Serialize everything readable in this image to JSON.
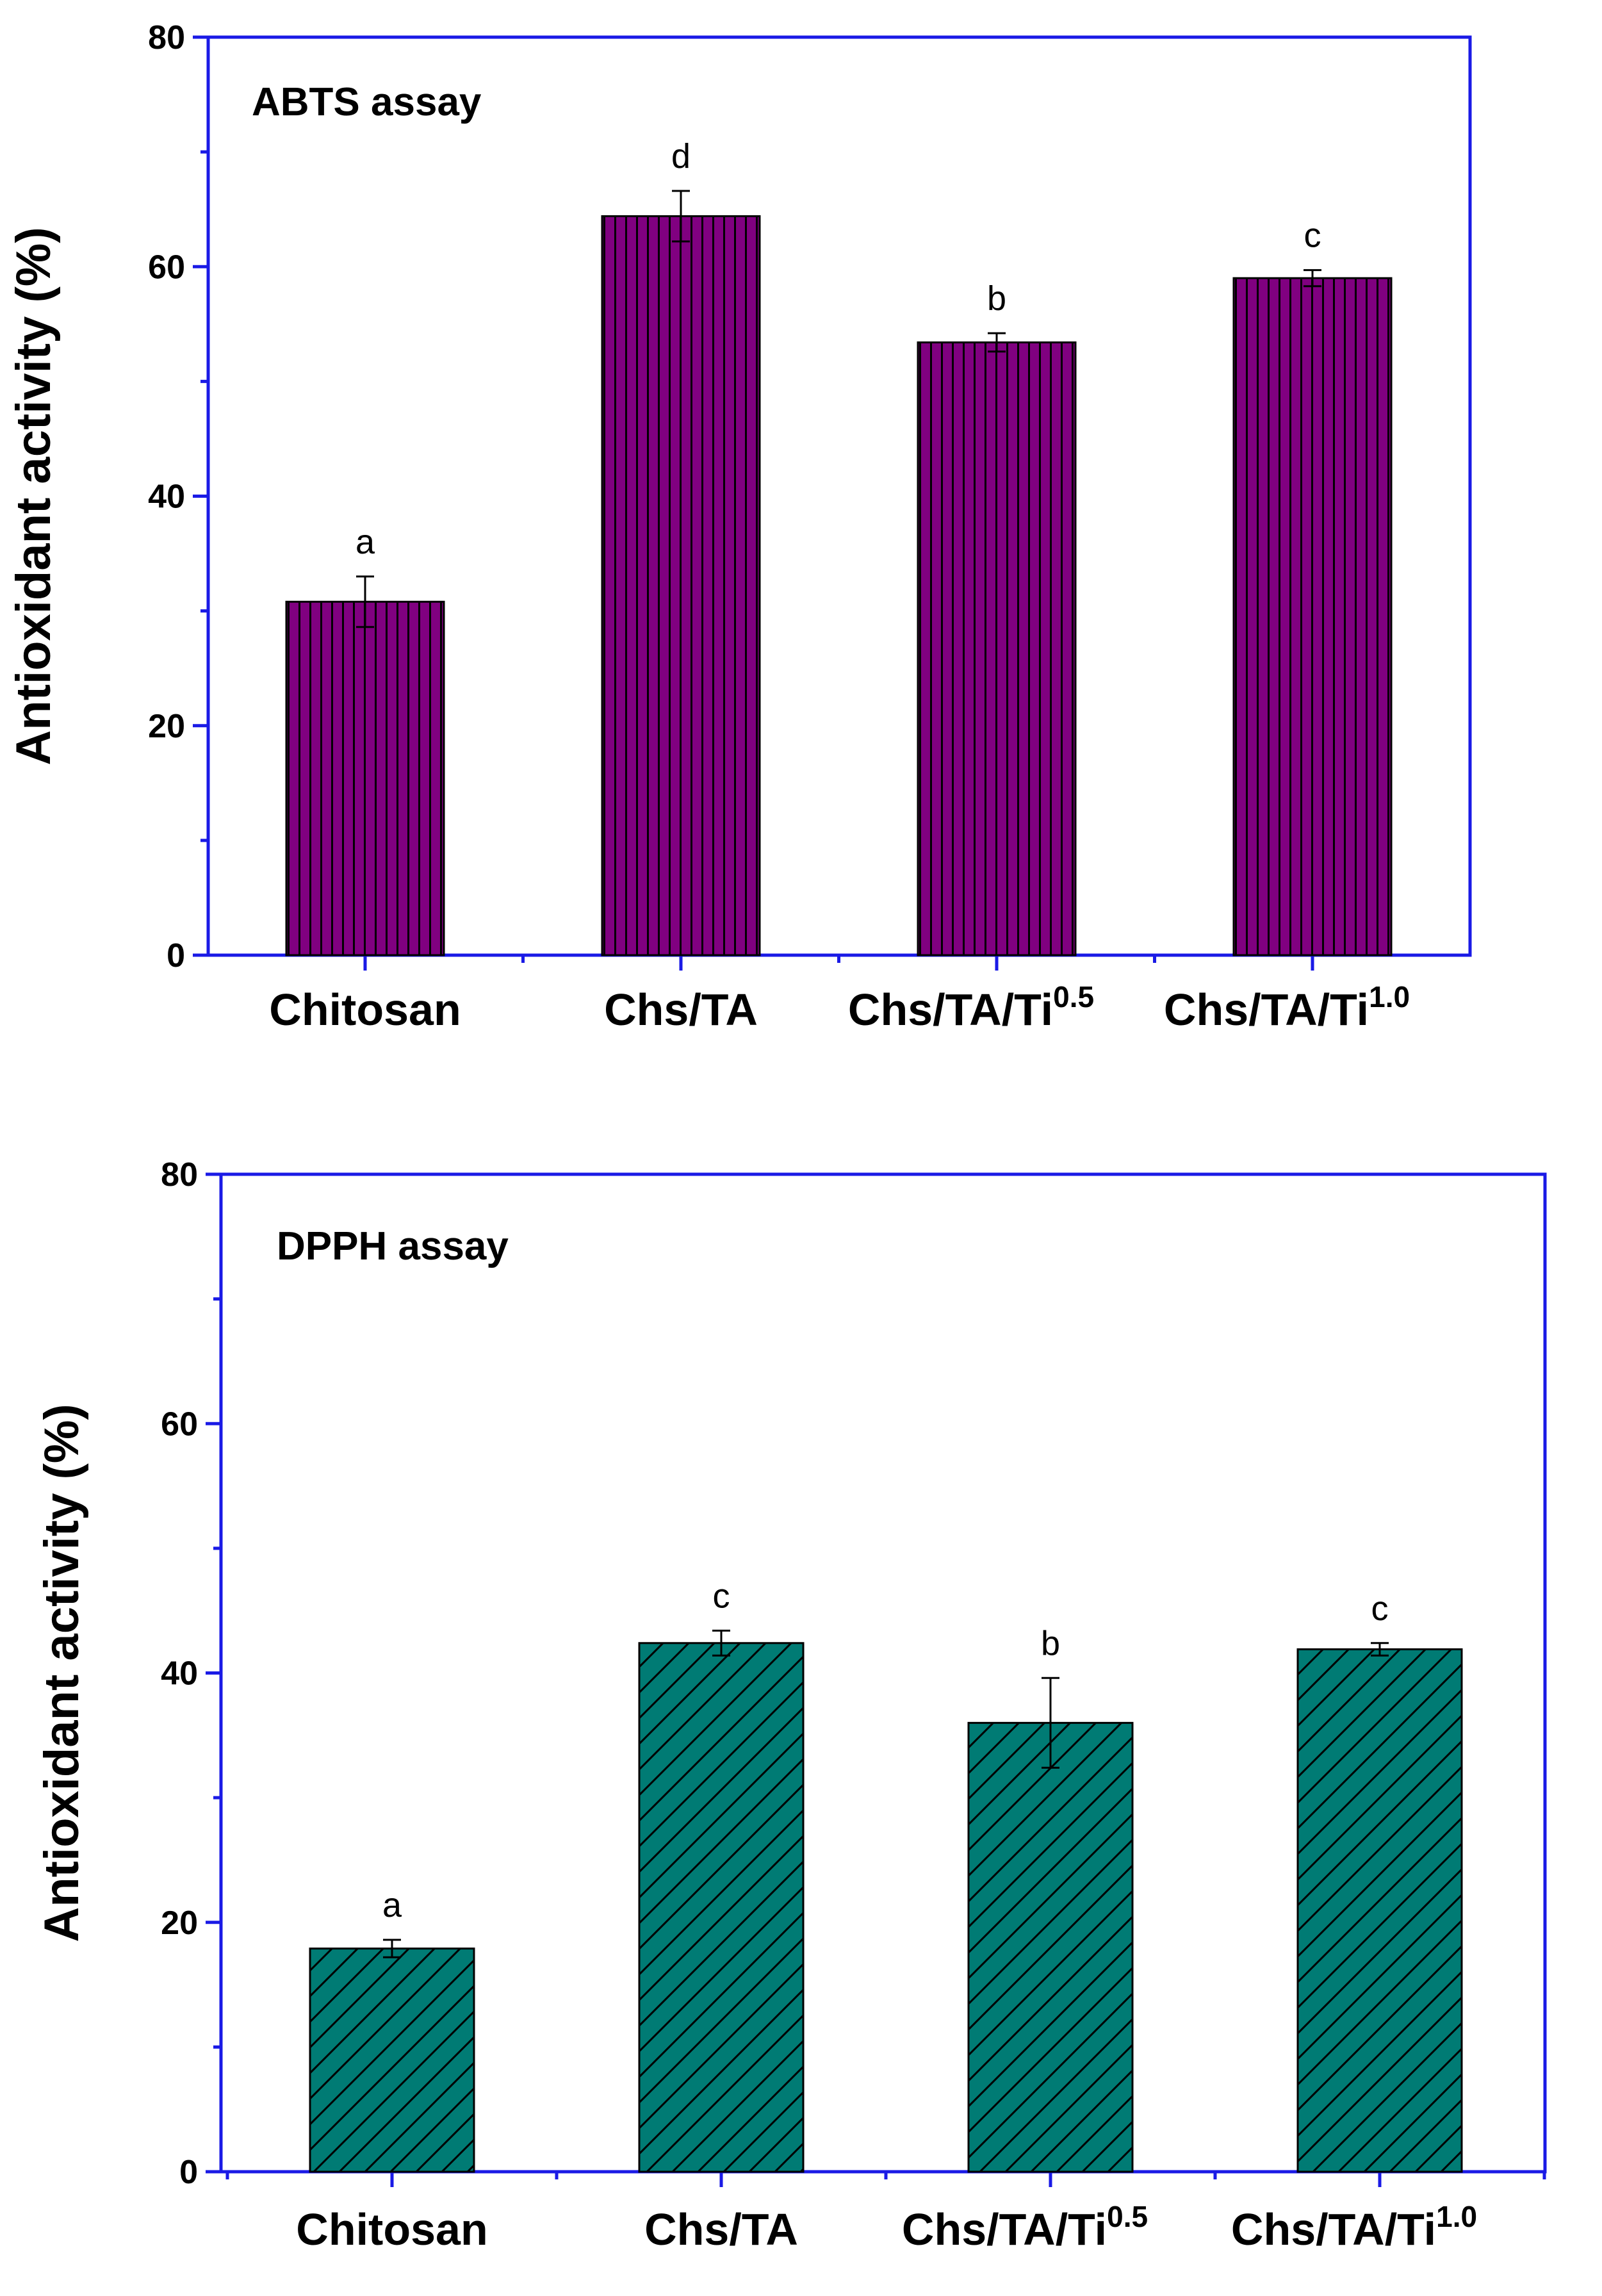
{
  "colors": {
    "axis": "#1a1ae6",
    "abts_bar": "#800080",
    "dpph_bar": "#007b74",
    "outline": "#000000"
  },
  "chart_data": [
    {
      "type": "bar",
      "title": "ABTS assay",
      "ylabel": "Antioxidant activity (%)",
      "xlabel": "",
      "ylim": [
        0,
        80
      ],
      "yticks": [
        "0",
        "20",
        "40",
        "60",
        "80"
      ],
      "categories": [
        {
          "base": "Chitosan",
          "sup": ""
        },
        {
          "base": "Chs/TA",
          "sup": ""
        },
        {
          "base": "Chs/TA/Ti",
          "sup": "0.5"
        },
        {
          "base": "Chs/TA/Ti",
          "sup": "1.0"
        }
      ],
      "values": [
        30.8,
        64.4,
        53.4,
        59.0
      ],
      "errors": [
        2.2,
        2.2,
        0.8,
        0.7
      ],
      "significance": [
        "a",
        "d",
        "b",
        "c"
      ],
      "pattern": "vertical-lines",
      "color_key": "abts_bar"
    },
    {
      "type": "bar",
      "title": "DPPH assay",
      "ylabel": "Antioxidant activity (%)",
      "xlabel": "",
      "ylim": [
        0,
        80
      ],
      "yticks": [
        "0",
        "20",
        "40",
        "60",
        "80"
      ],
      "categories": [
        {
          "base": "Chitosan",
          "sup": ""
        },
        {
          "base": "Chs/TA",
          "sup": ""
        },
        {
          "base": "Chs/TA/Ti",
          "sup": "0.5"
        },
        {
          "base": "Chs/TA/Ti",
          "sup": "1.0"
        }
      ],
      "values": [
        17.9,
        42.4,
        36.0,
        41.9
      ],
      "errors": [
        0.7,
        1.0,
        3.6,
        0.5
      ],
      "significance": [
        "a",
        "c",
        "b",
        "c"
      ],
      "pattern": "diagonal-lines",
      "color_key": "dpph_bar"
    }
  ]
}
